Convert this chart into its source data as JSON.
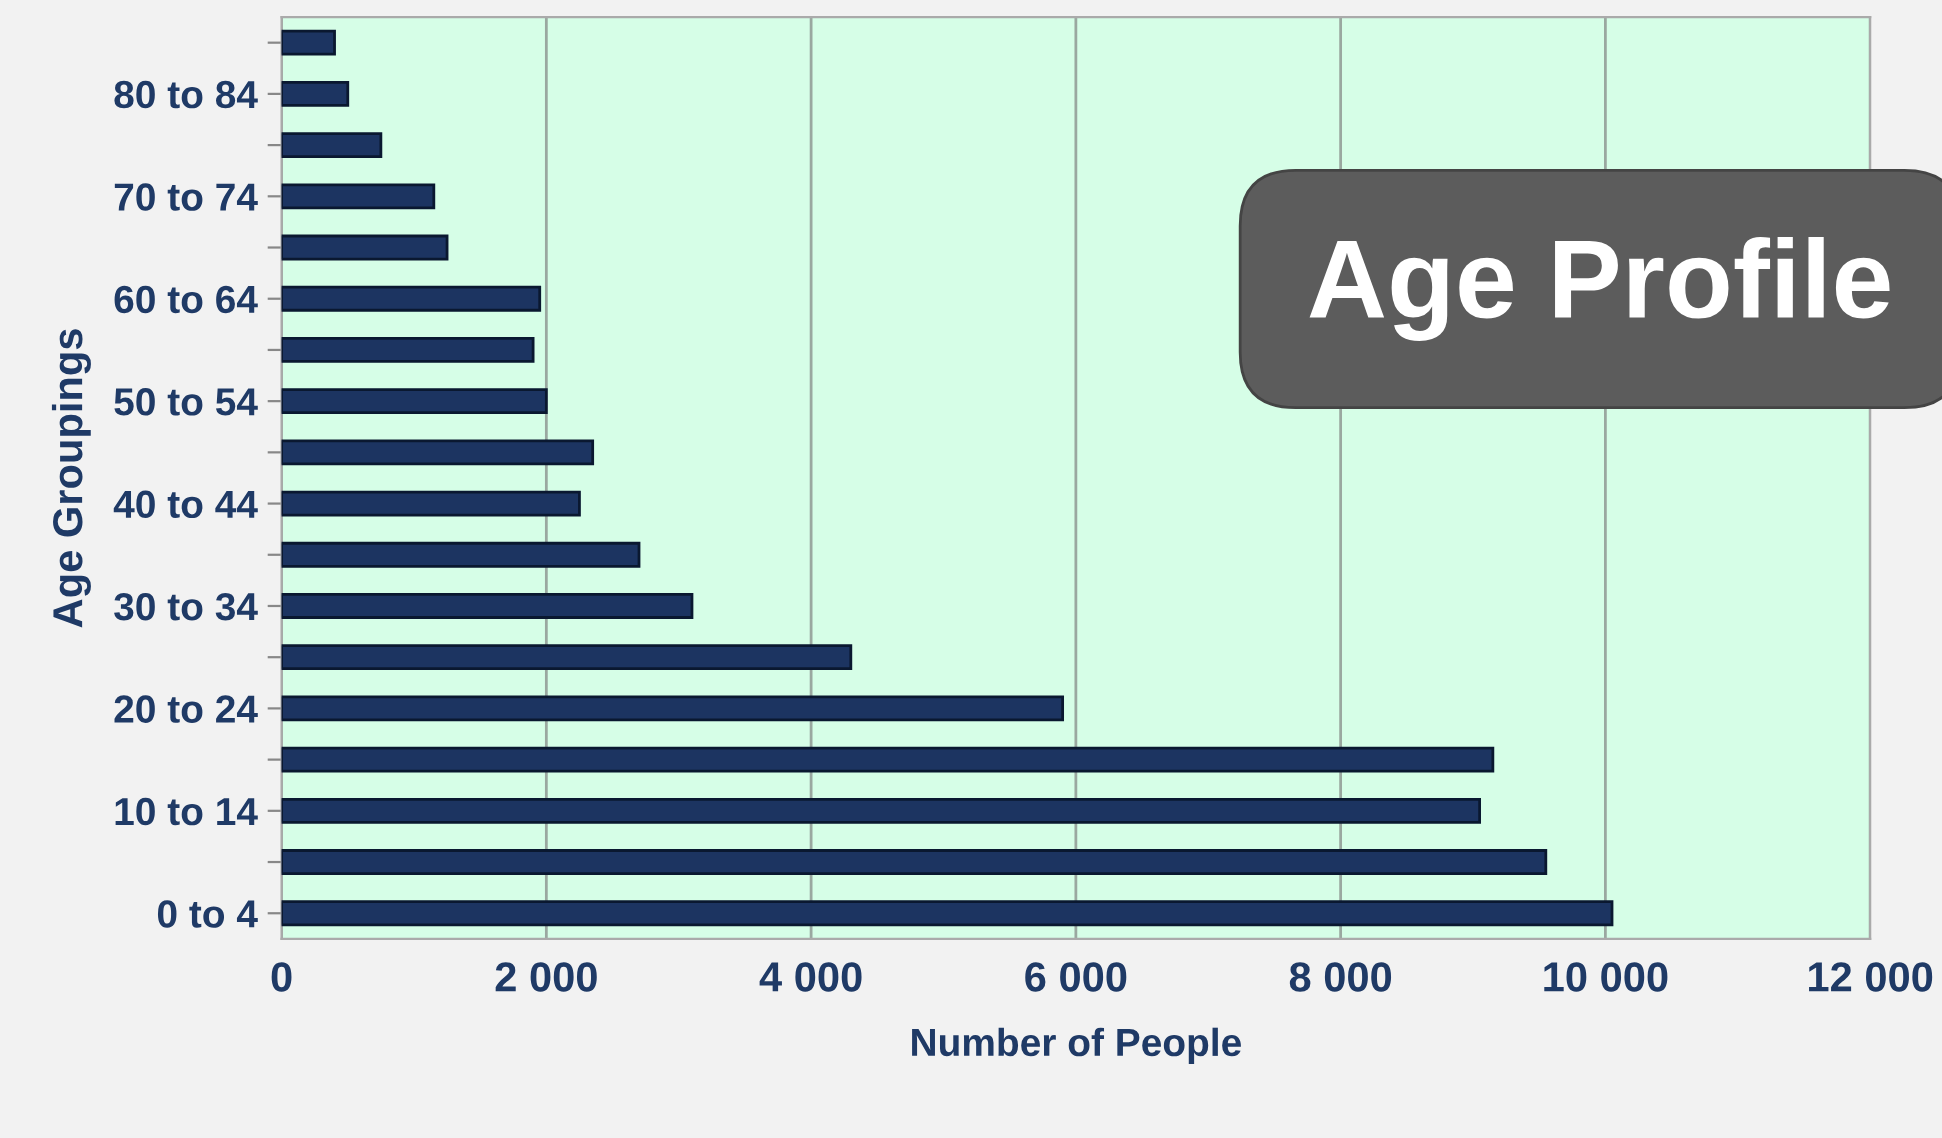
{
  "chart_data": {
    "type": "bar",
    "orientation": "horizontal",
    "title": "Age Profile",
    "xlabel": "Number of People",
    "ylabel": "Age Groupings",
    "categories": [
      null,
      "80 to 84",
      null,
      "70 to 74",
      null,
      "60 to 64",
      null,
      "50 to 54",
      null,
      "40 to 44",
      null,
      "30 to 34",
      null,
      "20 to 24",
      null,
      "10 to 14",
      null,
      "0 to 4"
    ],
    "values": [
      400,
      500,
      750,
      1150,
      1250,
      1950,
      1900,
      2000,
      2350,
      2250,
      2700,
      3100,
      4300,
      5900,
      9150,
      9050,
      9550,
      10050
    ],
    "color": "#1c3461",
    "xlim": [
      0,
      12000
    ],
    "xticks": [
      0,
      {
        "value": 2000,
        "label": "2 000"
      },
      {
        "value": 4000,
        "label": "4 000"
      },
      {
        "value": 6000,
        "label": "6 000"
      },
      {
        "value": 8000,
        "label": "8 000"
      },
      {
        "value": 10000,
        "label": "10 000"
      },
      {
        "value": 12000,
        "label": "12 000"
      }
    ],
    "grid": "x",
    "legend": false
  }
}
